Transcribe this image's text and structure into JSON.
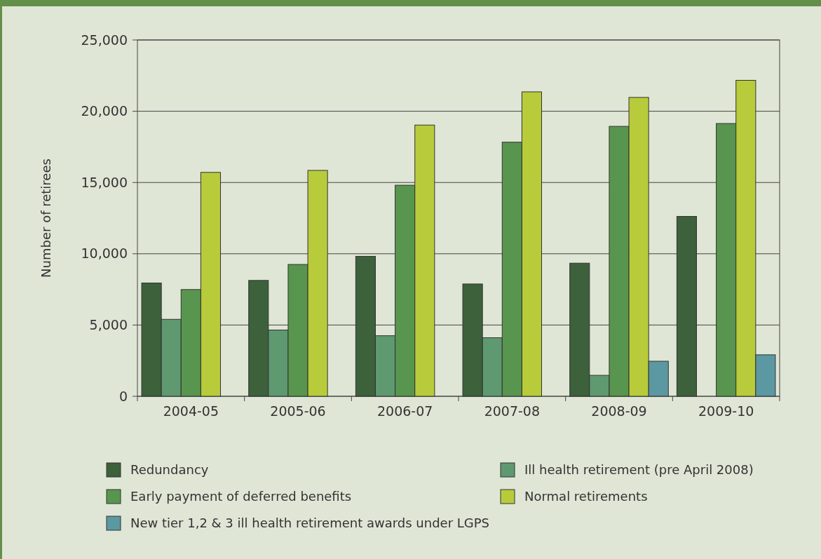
{
  "chart_data": {
    "type": "bar",
    "ylabel": "Number of retirees",
    "categories": [
      "2004-05",
      "2005-06",
      "2006-07",
      "2007-08",
      "2008-09",
      "2009-10"
    ],
    "series": [
      {
        "name": "Redundancy",
        "color": "#3c613b",
        "values": [
          7950,
          8130,
          9820,
          7880,
          9340,
          12620
        ]
      },
      {
        "name": "Ill health retirement (pre April 2008)",
        "color": "#5e9970",
        "values": [
          5400,
          4650,
          4250,
          4110,
          1470,
          null
        ]
      },
      {
        "name": "Early  payment of deferred benefits",
        "color": "#58954e",
        "values": [
          7490,
          9250,
          14810,
          17830,
          18940,
          19140
        ]
      },
      {
        "name": "Normal retirements",
        "color": "#b8cb3a",
        "values": [
          15710,
          15850,
          19030,
          21360,
          20970,
          22170
        ]
      },
      {
        "name": "New tier 1,2 & 3 ill health retirement awards under LGPS",
        "color": "#5b98a2",
        "values": [
          null,
          null,
          null,
          null,
          2460,
          2910
        ]
      }
    ],
    "ylim": [
      0,
      25000
    ],
    "yticks": [
      {
        "value": 0,
        "label": "0"
      },
      {
        "value": 5000,
        "label": "5,000"
      },
      {
        "value": 10000,
        "label": "10,000"
      },
      {
        "value": 15000,
        "label": "15,000"
      },
      {
        "value": 20000,
        "label": "20,000"
      },
      {
        "value": 25000,
        "label": "25,000"
      }
    ],
    "grid": "y",
    "legend": "bottom"
  }
}
